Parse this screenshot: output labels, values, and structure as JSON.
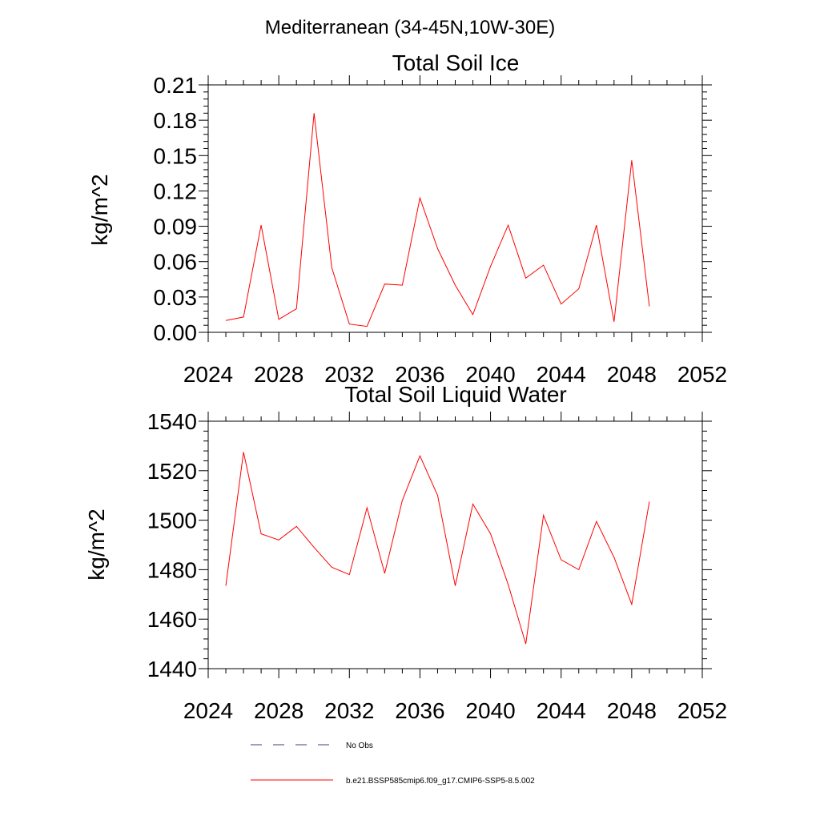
{
  "figure_title": "Mediterranean (34-45N,10W-30E)",
  "chart_data": [
    {
      "type": "line",
      "title": "Total Soil Ice",
      "xlabel": "",
      "ylabel": "kg/m^2",
      "xlim": [
        2024,
        2052
      ],
      "ylim": [
        0,
        0.21
      ],
      "xticks": [
        2024,
        2028,
        2032,
        2036,
        2040,
        2044,
        2048,
        2052
      ],
      "xtick_labels": [
        "2024",
        "2028",
        "2032",
        "2036",
        "2040",
        "2044",
        "2048",
        "2052"
      ],
      "yticks": [
        0,
        0.03,
        0.06,
        0.09,
        0.12,
        0.15,
        0.18,
        0.21
      ],
      "ytick_labels": [
        "0.00",
        "0.03",
        "0.06",
        "0.09",
        "0.12",
        "0.15",
        "0.18",
        "0.21"
      ],
      "grid": false,
      "series": [
        {
          "name": "b.e21.BSSP585cmip6.f09_g17.CMIP6-SSP5-8.5.002",
          "color": "#ff0000",
          "x": [
            2025,
            2026,
            2027,
            2028,
            2029,
            2030,
            2031,
            2032,
            2033,
            2034,
            2035,
            2036,
            2037,
            2038,
            2039,
            2040,
            2041,
            2042,
            2043,
            2044,
            2045,
            2046,
            2047,
            2048,
            2049
          ],
          "values": [
            0.01,
            0.013,
            0.091,
            0.011,
            0.02,
            0.186,
            0.055,
            0.007,
            0.005,
            0.041,
            0.04,
            0.114,
            0.071,
            0.04,
            0.015,
            0.056,
            0.091,
            0.046,
            0.057,
            0.024,
            0.037,
            0.091,
            0.009,
            0.146,
            0.022
          ]
        }
      ]
    },
    {
      "type": "line",
      "title": "Total Soil Liquid Water",
      "xlabel": "",
      "ylabel": "kg/m^2",
      "xlim": [
        2024,
        2052
      ],
      "ylim": [
        1440,
        1540
      ],
      "xticks": [
        2024,
        2028,
        2032,
        2036,
        2040,
        2044,
        2048,
        2052
      ],
      "xtick_labels": [
        "2024",
        "2028",
        "2032",
        "2036",
        "2040",
        "2044",
        "2048",
        "2052"
      ],
      "yticks": [
        1440,
        1460,
        1480,
        1500,
        1520,
        1540
      ],
      "ytick_labels": [
        "1440",
        "1460",
        "1480",
        "1500",
        "1520",
        "1540"
      ],
      "grid": false,
      "series": [
        {
          "name": "b.e21.BSSP585cmip6.f09_g17.CMIP6-SSP5-8.5.002",
          "color": "#ff0000",
          "x": [
            2025,
            2026,
            2027,
            2028,
            2029,
            2030,
            2031,
            2032,
            2033,
            2034,
            2035,
            2036,
            2037,
            2038,
            2039,
            2040,
            2041,
            2042,
            2043,
            2044,
            2045,
            2046,
            2047,
            2048,
            2049
          ],
          "values": [
            1473.5,
            1527.5,
            1494.5,
            1492.0,
            1497.5,
            1489.0,
            1481.0,
            1478.0,
            1505.0,
            1478.5,
            1508.0,
            1526.0,
            1510.0,
            1473.5,
            1506.5,
            1494.5,
            1474.0,
            1450.0,
            1502.0,
            1484.0,
            1480.0,
            1499.5,
            1485.0,
            1466.0,
            1507.5
          ]
        }
      ]
    }
  ],
  "legend": {
    "placement": "bottom-center",
    "entries": [
      {
        "label": "No Obs",
        "color": "#3b3f7a",
        "style": "dashed"
      },
      {
        "label": "b.e21.BSSP585cmip6.f09_g17.CMIP6-SSP5-8.5.002",
        "color": "#ff0000",
        "style": "solid"
      }
    ]
  }
}
